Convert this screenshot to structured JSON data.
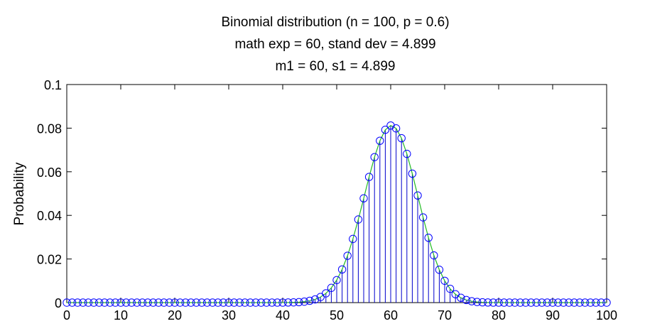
{
  "chart_data": {
    "type": "stem",
    "title_lines": [
      "Binomial distribution (n = 100, p = 0.6)",
      "math exp = 60, stand dev = 4.899",
      "m1 = 60, s1 = 4.899"
    ],
    "xlabel": "",
    "ylabel": "Probability",
    "xlim": [
      0,
      100
    ],
    "ylim": [
      0,
      0.1
    ],
    "x_ticks": [
      0,
      10,
      20,
      30,
      40,
      50,
      60,
      70,
      80,
      90,
      100
    ],
    "x_tick_labels": [
      "0",
      "10",
      "20",
      "30",
      "40",
      "50",
      "60",
      "70",
      "80",
      "90",
      "100"
    ],
    "y_ticks": [
      0,
      0.02,
      0.04,
      0.06,
      0.08,
      0.1
    ],
    "y_tick_labels": [
      "0",
      "0.02",
      "0.04",
      "0.06",
      "0.08",
      "0.1"
    ],
    "distribution": {
      "n": 100,
      "p": 0.6
    },
    "grid": false,
    "stem_color": "#0000cc",
    "marker_color": "#0000ff",
    "curve_color": "#22bb22"
  }
}
